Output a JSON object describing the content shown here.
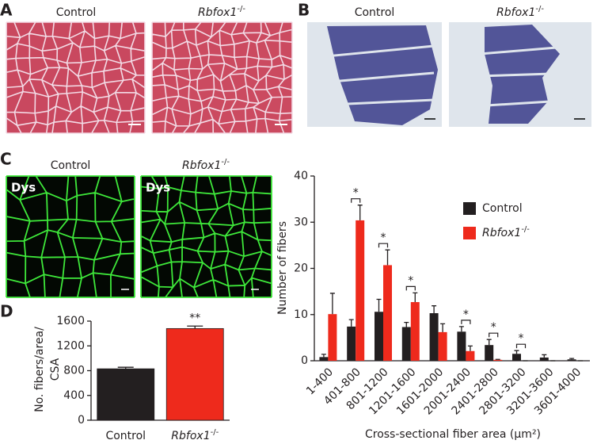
{
  "panel_labels": [
    "A",
    "B",
    "C",
    "D"
  ],
  "micrograph_captions": {
    "A": [
      "Control",
      "Rbfox1-/-"
    ],
    "B": [
      "Control",
      "Rbfox1-/-"
    ],
    "C": [
      "Control",
      "Rbfox1-/-"
    ]
  },
  "stain_labels": [
    "Dys",
    "Dys"
  ],
  "chart_data": [
    {
      "type": "grouped_bar",
      "ylabel": "Number of fibers",
      "xlabel": "Cross-sectional fiber area (μm²)",
      "categories": [
        "1-400",
        "401-800",
        "801-1200",
        "1201-1600",
        "1601-2000",
        "2001-2400",
        "2401-2800",
        "2801-3200",
        "3201-3600",
        "3601-4000"
      ],
      "series": [
        {
          "name": "Control",
          "color": "#231f20",
          "values": [
            0.8,
            7.4,
            10.6,
            7.3,
            10.3,
            6.3,
            3.4,
            1.5,
            0.7,
            0.3
          ],
          "errors": [
            0.6,
            1.5,
            2.7,
            1.0,
            1.6,
            1.1,
            1.2,
            0.7,
            0.6,
            0.2
          ]
        },
        {
          "name": "Rbfox1-/-",
          "color": "#ee2a1c",
          "values": [
            10.1,
            30.4,
            20.7,
            12.7,
            6.2,
            2.1,
            0.2,
            0,
            0,
            0
          ],
          "errors": [
            4.5,
            3.3,
            3.3,
            2.0,
            1.8,
            1.1,
            0.1,
            0,
            0,
            0
          ]
        }
      ],
      "significance": [
        null,
        "*",
        "*",
        "*",
        null,
        "*",
        "*",
        "*",
        null,
        null
      ],
      "ylim": [
        0,
        40
      ],
      "yticks": [
        0,
        10,
        20,
        30,
        40
      ],
      "grid": false,
      "legend": "upper right"
    },
    {
      "type": "bar",
      "ylabel": [
        "No. fibers/area/",
        "CSA"
      ],
      "categories": [
        "Control",
        "Rbfox1-/-"
      ],
      "values": [
        830,
        1480
      ],
      "errors": [
        25,
        40
      ],
      "colors": [
        "#231f20",
        "#ee2a1c"
      ],
      "annotation": "**",
      "ylim": [
        0,
        1600
      ],
      "yticks": [
        0,
        400,
        800,
        1200,
        1600
      ],
      "grid": false
    }
  ]
}
